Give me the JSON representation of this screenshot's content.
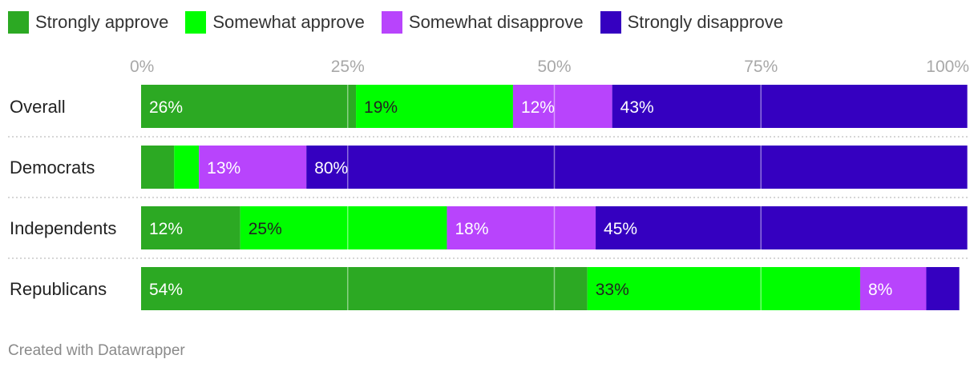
{
  "chart_data": {
    "type": "bar",
    "orientation": "horizontal",
    "stacked": true,
    "categories": [
      "Overall",
      "Democrats",
      "Independents",
      "Republicans"
    ],
    "series": [
      {
        "name": "Strongly approve",
        "color": "#2ca923",
        "values": [
          26,
          4,
          12,
          54
        ],
        "labels": [
          "26%",
          "",
          "12%",
          "54%"
        ]
      },
      {
        "name": "Somewhat approve",
        "color": "#00fe00",
        "values": [
          19,
          3,
          25,
          33
        ],
        "labels": [
          "19%",
          "",
          "25%",
          "33%"
        ]
      },
      {
        "name": "Somewhat disapprove",
        "color": "#b844fc",
        "values": [
          12,
          13,
          18,
          8
        ],
        "labels": [
          "12%",
          "13%",
          "18%",
          "8%"
        ]
      },
      {
        "name": "Strongly disapprove",
        "color": "#3500c0",
        "values": [
          43,
          80,
          45,
          4
        ],
        "labels": [
          "43%",
          "80%",
          "45%",
          ""
        ]
      }
    ],
    "xlim": [
      0,
      100
    ],
    "ticks": [
      0,
      25,
      50,
      75,
      100
    ],
    "tick_labels": [
      "0%",
      "25%",
      "50%",
      "75%",
      "100%"
    ],
    "grid": true,
    "legend_position": "top-left"
  },
  "credit": "Created with Datawrapper"
}
